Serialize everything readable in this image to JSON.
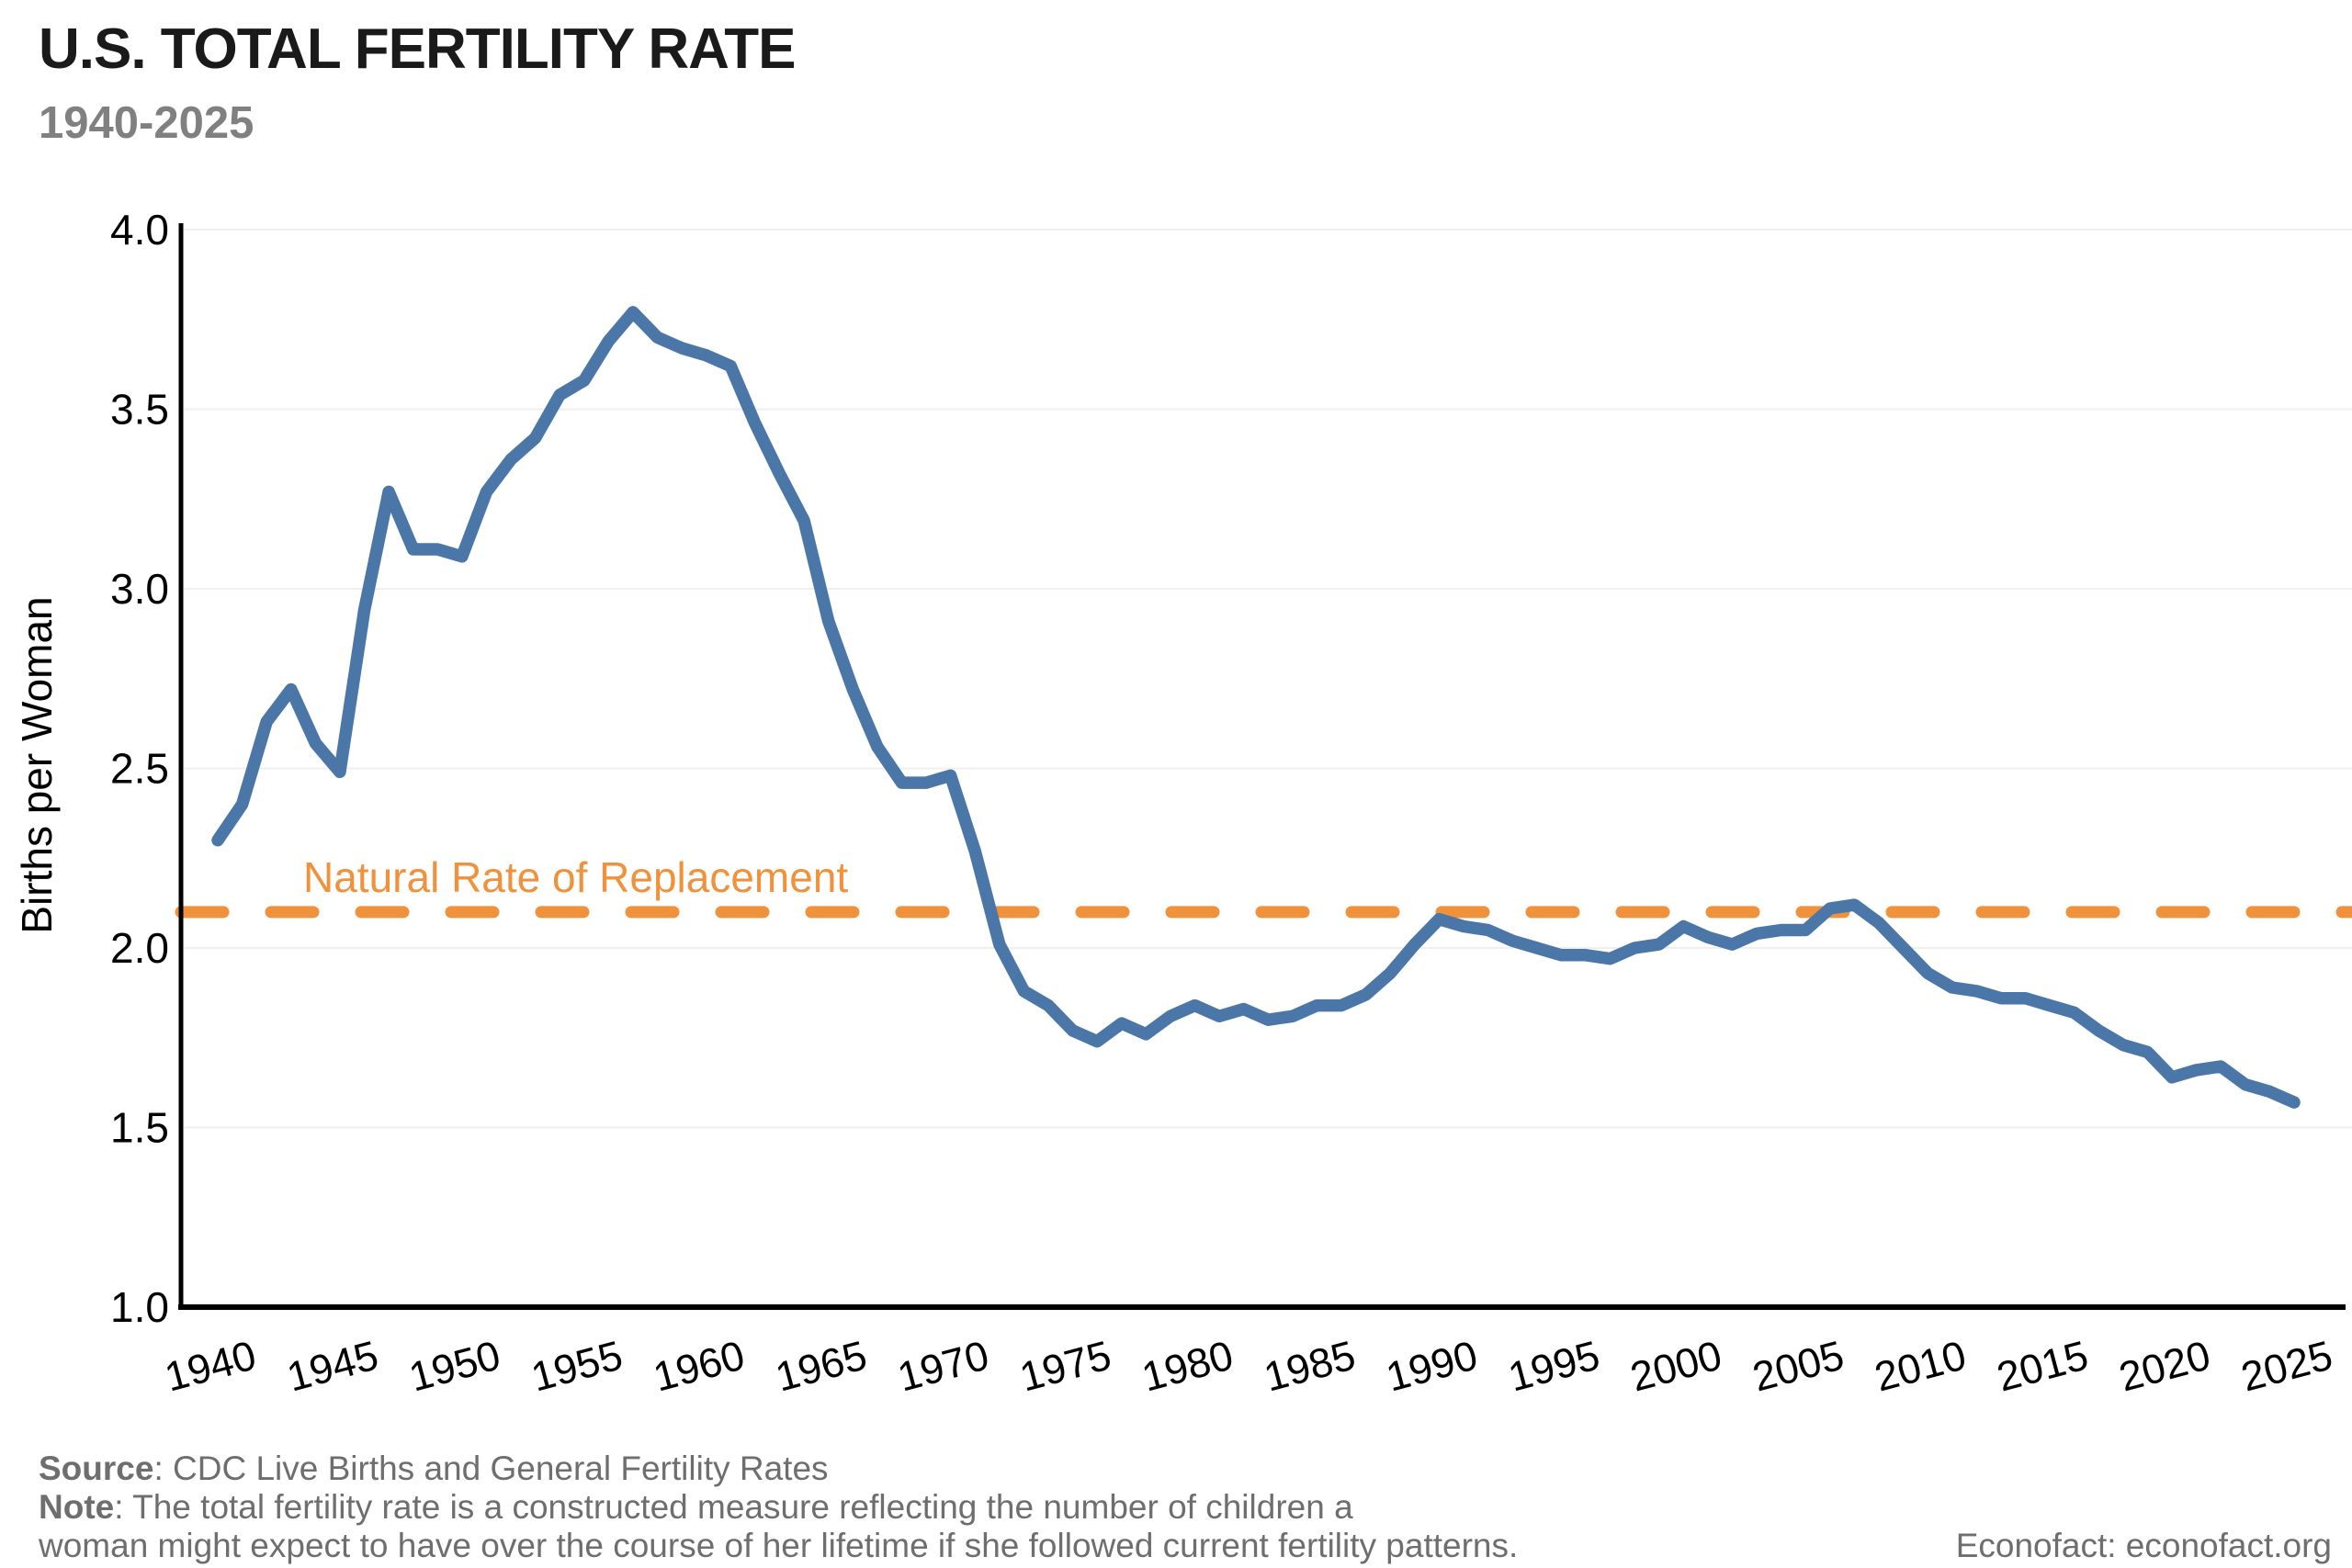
{
  "header": {
    "title": "U.S. TOTAL FERTILITY RATE",
    "subtitle": "1940-2025"
  },
  "footer": {
    "source_bold": "Source",
    "source_rest": ": CDC Live Births and General Fertility Rates",
    "note_bold": "Note",
    "note_line1_rest": ": The total fertility rate is a constructed measure reflecting the number of children a",
    "note_line2": "woman might expect to have over the course of her lifetime if she followed current fertility patterns.",
    "attribution": "Econofact: econofact.org"
  },
  "chart_data": {
    "type": "line",
    "title": "U.S. TOTAL FERTILITY RATE",
    "subtitle": "1940-2025",
    "xlabel": "",
    "ylabel": "Births per Woman",
    "ylim": [
      1.0,
      4.0
    ],
    "yticks": [
      1.0,
      1.5,
      2.0,
      2.5,
      3.0,
      3.5,
      4.0
    ],
    "xticks": [
      1940,
      1945,
      1950,
      1955,
      1960,
      1965,
      1970,
      1975,
      1980,
      1985,
      1990,
      1995,
      2000,
      2005,
      2010,
      2015,
      2020,
      2025
    ],
    "grid": "horizontal-light",
    "legend": "none",
    "line_color": "#4A77A8",
    "reference_line": {
      "label": "Natural Rate of Replacement",
      "value": 2.1,
      "style": "dashed",
      "color": "#F0923C"
    },
    "x": [
      1940,
      1941,
      1942,
      1943,
      1944,
      1945,
      1946,
      1947,
      1948,
      1949,
      1950,
      1951,
      1952,
      1953,
      1954,
      1955,
      1956,
      1957,
      1958,
      1959,
      1960,
      1961,
      1962,
      1963,
      1964,
      1965,
      1966,
      1967,
      1968,
      1969,
      1970,
      1971,
      1972,
      1973,
      1974,
      1975,
      1976,
      1977,
      1978,
      1979,
      1980,
      1981,
      1982,
      1983,
      1984,
      1985,
      1986,
      1987,
      1988,
      1989,
      1990,
      1991,
      1992,
      1993,
      1994,
      1995,
      1996,
      1997,
      1998,
      1999,
      2000,
      2001,
      2002,
      2003,
      2004,
      2005,
      2006,
      2007,
      2008,
      2009,
      2010,
      2011,
      2012,
      2013,
      2014,
      2015,
      2016,
      2017,
      2018,
      2019,
      2020,
      2021,
      2022,
      2023,
      2024,
      2025
    ],
    "values": [
      2.3,
      2.4,
      2.63,
      2.72,
      2.57,
      2.49,
      2.94,
      3.27,
      3.11,
      3.11,
      3.09,
      3.27,
      3.36,
      3.42,
      3.54,
      3.58,
      3.69,
      3.77,
      3.7,
      3.67,
      3.65,
      3.62,
      3.46,
      3.32,
      3.19,
      2.91,
      2.72,
      2.56,
      2.46,
      2.46,
      2.48,
      2.27,
      2.01,
      1.88,
      1.84,
      1.77,
      1.74,
      1.79,
      1.76,
      1.81,
      1.84,
      1.81,
      1.83,
      1.8,
      1.81,
      1.84,
      1.84,
      1.87,
      1.93,
      2.01,
      2.08,
      2.06,
      2.05,
      2.02,
      2.0,
      1.98,
      1.98,
      1.97,
      2.0,
      2.01,
      2.06,
      2.03,
      2.01,
      2.04,
      2.05,
      2.05,
      2.11,
      2.12,
      2.07,
      2.0,
      1.93,
      1.89,
      1.88,
      1.86,
      1.86,
      1.84,
      1.82,
      1.77,
      1.73,
      1.71,
      1.64,
      1.66,
      1.67,
      1.62,
      1.6,
      1.57
    ]
  },
  "colors": {
    "series_blue": "#4A77A8",
    "reference_orange": "#F0923C",
    "grid_gray": "#efefef",
    "axis_black": "#000000",
    "text_gray": "#6e6e6e",
    "subtitle_gray": "#808080"
  }
}
